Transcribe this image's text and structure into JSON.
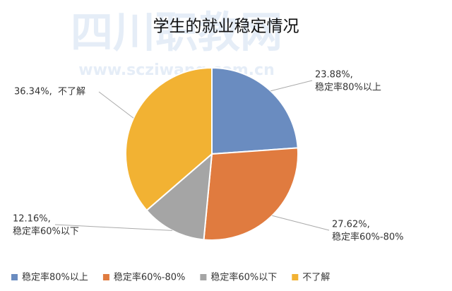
{
  "chart_data": {
    "type": "pie",
    "title": "学生的就业稳定情况",
    "watermark": {
      "brand": "四川职教网",
      "url": "www.scziwang.com.cn"
    },
    "categories": [
      "稳定率80%以上",
      "稳定率60%-80%",
      "稳定率60%以下",
      "不了解"
    ],
    "values": [
      23.88,
      27.62,
      12.16,
      36.34
    ],
    "value_labels": [
      "23.88%,",
      "27.62%,",
      "12.16%,",
      "36.34%,"
    ],
    "colors": [
      "#6a8cc0",
      "#e07b3f",
      "#a5a5a5",
      "#f2b233"
    ],
    "legend": "bottom"
  }
}
